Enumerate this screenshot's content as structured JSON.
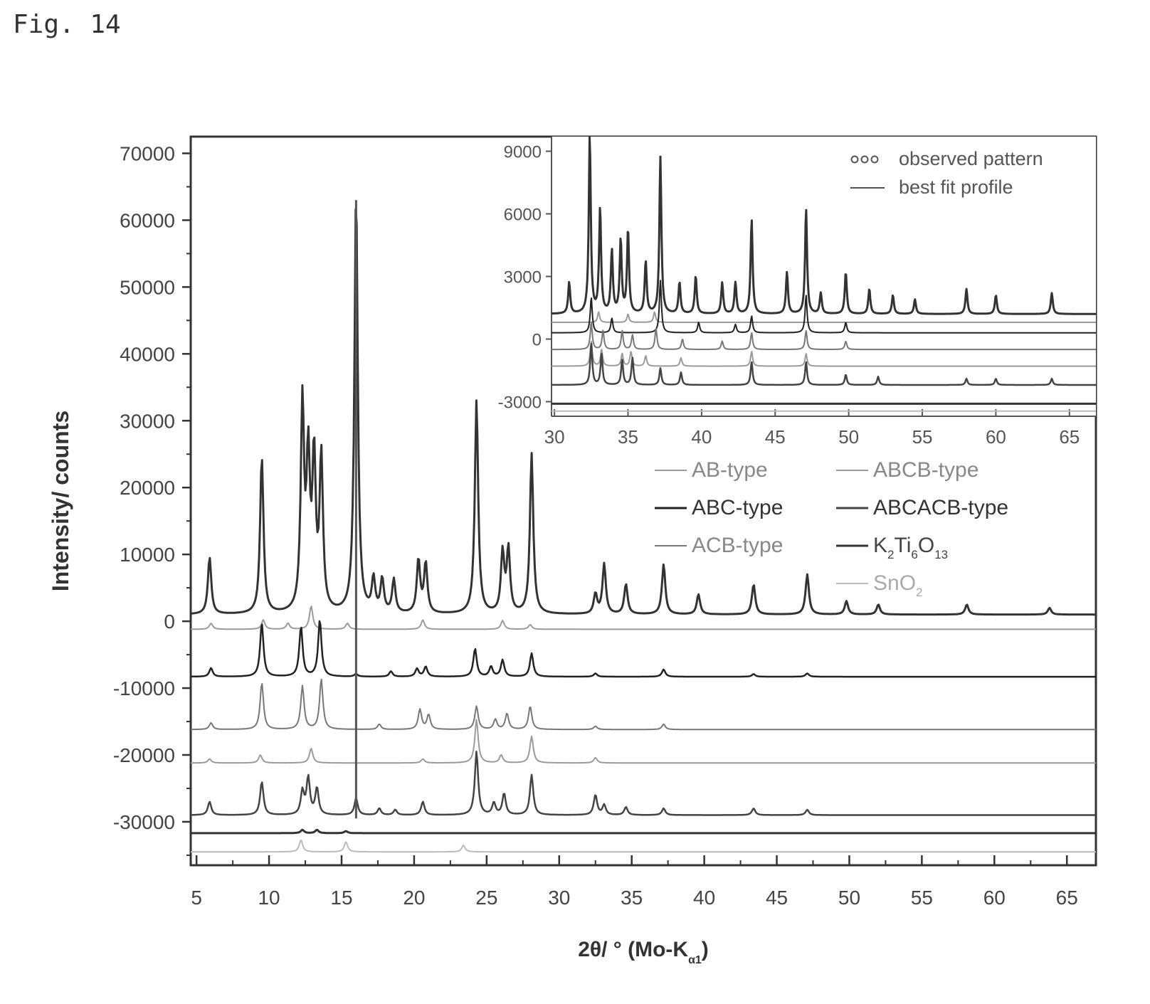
{
  "figure_label": "Fig. 14",
  "chart_data": [
    {
      "type": "line",
      "name": "main",
      "xlabel": "2θ/ ° (Mo-K",
      "xlabel_sub": "α1",
      "xlabel_close": ")",
      "ylabel": "Intensity/ counts",
      "xlim": [
        4.6,
        67
      ],
      "ylim": [
        -36500,
        72500
      ],
      "xticks": [
        5,
        10,
        15,
        20,
        25,
        30,
        35,
        40,
        45,
        50,
        55,
        60,
        65
      ],
      "yticks": [
        70000,
        60000,
        50000,
        40000,
        30000,
        20000,
        10000,
        0,
        -10000,
        -20000,
        -30000
      ],
      "ytick_labels": [
        "70000",
        "60000",
        "50000",
        "40000",
        "30000",
        "20000",
        "10000",
        "0",
        "-10000",
        "-20000",
        "-30000"
      ],
      "grid": false,
      "legend_position": "middle-right",
      "legend": [
        {
          "label": "AB-type",
          "color": "#9a9a9a",
          "width": 2
        },
        {
          "label": "ABCB-type",
          "color": "#9a9a9a",
          "width": 2
        },
        {
          "label": "ABC-type",
          "color": "#222222",
          "width": 3
        },
        {
          "label": "ABCACB-type",
          "color": "#444444",
          "width": 3
        },
        {
          "label": "ACB-type",
          "color": "#777777",
          "width": 2
        },
        {
          "label": "K",
          "label_parts": [
            "K",
            "2",
            "Ti",
            "6",
            "O",
            "13"
          ],
          "color": "#333333",
          "width": 3
        },
        {
          "label": "SnO",
          "label_parts": [
            "SnO",
            "2"
          ],
          "color": "#bbbbbb",
          "width": 2
        }
      ],
      "series": [
        {
          "name": "observed/fit",
          "offset": 1000,
          "color": "#333333",
          "width": 3,
          "peaks": [
            [
              5.9,
              8500
            ],
            [
              9.5,
              23500
            ],
            [
              12.3,
              31000
            ],
            [
              12.7,
              22000
            ],
            [
              13.1,
              22500
            ],
            [
              13.6,
              23000
            ],
            [
              16.0,
              63000
            ],
            [
              17.2,
              5000
            ],
            [
              17.8,
              5000
            ],
            [
              18.6,
              5000
            ],
            [
              20.3,
              8000
            ],
            [
              20.8,
              7500
            ],
            [
              24.3,
              32000
            ],
            [
              26.1,
              9000
            ],
            [
              26.5,
              9500
            ],
            [
              28.1,
              24000
            ],
            [
              32.5,
              3000
            ],
            [
              33.1,
              7500
            ],
            [
              34.6,
              4500
            ],
            [
              37.2,
              7500
            ],
            [
              39.6,
              3000
            ],
            [
              43.4,
              4500
            ],
            [
              47.1,
              6000
            ],
            [
              49.8,
              2000
            ],
            [
              52.0,
              1500
            ],
            [
              58.1,
              1500
            ],
            [
              63.8,
              1000
            ]
          ]
        },
        {
          "name": "AB-type",
          "offset": -1200,
          "color": "#9a9a9a",
          "width": 2,
          "peaks": [
            [
              6.0,
              900
            ],
            [
              9.6,
              1400
            ],
            [
              11.3,
              900
            ],
            [
              12.9,
              3500
            ],
            [
              15.4,
              900
            ],
            [
              20.6,
              1400
            ],
            [
              26.1,
              1300
            ],
            [
              28.0,
              700
            ]
          ]
        },
        {
          "name": "ABC-type",
          "offset": -8300,
          "color": "#222222",
          "width": 2.5,
          "peaks": [
            [
              6.0,
              1300
            ],
            [
              9.5,
              8000
            ],
            [
              12.2,
              7500
            ],
            [
              13.5,
              8500
            ],
            [
              16.0,
              400
            ],
            [
              18.4,
              800
            ],
            [
              20.2,
              1200
            ],
            [
              20.8,
              1500
            ],
            [
              24.2,
              4200
            ],
            [
              25.3,
              1500
            ],
            [
              26.1,
              2500
            ],
            [
              28.1,
              3500
            ],
            [
              32.5,
              500
            ],
            [
              37.2,
              1100
            ],
            [
              43.4,
              400
            ],
            [
              47.1,
              500
            ]
          ]
        },
        {
          "name": "ACB-type",
          "offset": -16200,
          "color": "#777777",
          "width": 2,
          "peaks": [
            [
              6.0,
              1000
            ],
            [
              9.5,
              7000
            ],
            [
              12.3,
              6500
            ],
            [
              13.6,
              7500
            ],
            [
              17.6,
              800
            ],
            [
              20.4,
              3000
            ],
            [
              21.0,
              2200
            ],
            [
              24.3,
              3500
            ],
            [
              25.6,
              1500
            ],
            [
              26.4,
              2400
            ],
            [
              28.0,
              3500
            ],
            [
              32.5,
              500
            ],
            [
              37.2,
              800
            ]
          ]
        },
        {
          "name": "ABCB-type",
          "offset": -21200,
          "color": "#9a9a9a",
          "width": 2,
          "peaks": [
            [
              5.9,
              600
            ],
            [
              9.4,
              1200
            ],
            [
              12.9,
              2200
            ],
            [
              20.6,
              600
            ],
            [
              24.3,
              6500
            ],
            [
              26.0,
              1200
            ],
            [
              28.1,
              4000
            ],
            [
              32.5,
              800
            ]
          ]
        },
        {
          "name": "ABCACB-type",
          "offset": -29000,
          "color": "#444444",
          "width": 2.5,
          "peaks": [
            [
              5.9,
              2000
            ],
            [
              9.5,
              5000
            ],
            [
              12.3,
              3500
            ],
            [
              12.7,
              5500
            ],
            [
              13.3,
              4000
            ],
            [
              16.0,
              2500
            ],
            [
              17.6,
              1000
            ],
            [
              18.7,
              800
            ],
            [
              20.6,
              2000
            ],
            [
              24.3,
              9500
            ],
            [
              25.5,
              1800
            ],
            [
              26.2,
              3200
            ],
            [
              28.1,
              6000
            ],
            [
              32.5,
              3000
            ],
            [
              33.1,
              1500
            ],
            [
              34.6,
              1200
            ],
            [
              37.2,
              1000
            ],
            [
              43.4,
              1000
            ],
            [
              47.1,
              800
            ]
          ]
        },
        {
          "name": "K2Ti6O13",
          "offset": -31700,
          "color": "#333333",
          "width": 3,
          "peaks": [
            [
              12.3,
              500
            ],
            [
              13.3,
              500
            ],
            [
              15.3,
              300
            ]
          ]
        },
        {
          "name": "SnO2",
          "offset": -34500,
          "color": "#bbbbbb",
          "width": 2,
          "peaks": [
            [
              12.2,
              1800
            ],
            [
              15.3,
              1500
            ],
            [
              23.4,
              1000
            ]
          ]
        }
      ],
      "spikes": [
        {
          "x": 16.0,
          "from": -29500,
          "to": 63000,
          "color": "#555555",
          "width": 3
        }
      ]
    },
    {
      "type": "line",
      "name": "inset",
      "xlim": [
        29.8,
        66.8
      ],
      "ylim": [
        -3700,
        9700
      ],
      "xticks": [
        30,
        35,
        40,
        45,
        50,
        55,
        60,
        65
      ],
      "yticks": [
        9000,
        6000,
        3000,
        0,
        -3000
      ],
      "ytick_labels": [
        "9000",
        "6000",
        "3000",
        "0",
        "-3000"
      ],
      "legend_position": "top-right",
      "legend": [
        {
          "label": "observed pattern",
          "style": "circles",
          "color": "#555555"
        },
        {
          "label": "best fit profile",
          "style": "line",
          "color": "#555555"
        }
      ],
      "series": [
        {
          "name": "observed/fit",
          "offset": 1200,
          "color": "#333333",
          "width": 3,
          "peaks": [
            [
              31.0,
              1500
            ],
            [
              32.4,
              8500
            ],
            [
              33.1,
              5000
            ],
            [
              33.9,
              3000
            ],
            [
              34.5,
              3500
            ],
            [
              35.0,
              4000
            ],
            [
              36.2,
              2500
            ],
            [
              37.2,
              7500
            ],
            [
              38.5,
              1500
            ],
            [
              39.6,
              1800
            ],
            [
              41.4,
              1500
            ],
            [
              42.3,
              1500
            ],
            [
              43.4,
              4500
            ],
            [
              45.8,
              2000
            ],
            [
              47.1,
              5000
            ],
            [
              48.1,
              1000
            ],
            [
              49.8,
              2000
            ],
            [
              51.4,
              1200
            ],
            [
              53.0,
              900
            ],
            [
              54.5,
              700
            ],
            [
              58.0,
              1200
            ],
            [
              60.0,
              900
            ],
            [
              63.8,
              1000
            ]
          ]
        },
        {
          "name": "AB-type",
          "offset": 800,
          "color": "#9a9a9a",
          "width": 2,
          "peaks": [
            [
              33.0,
              500
            ],
            [
              35.0,
              400
            ],
            [
              36.8,
              500
            ]
          ]
        },
        {
          "name": "ABC-type",
          "offset": 300,
          "color": "#222222",
          "width": 2,
          "peaks": [
            [
              32.5,
              1700
            ],
            [
              33.9,
              700
            ],
            [
              37.2,
              2500
            ],
            [
              39.8,
              500
            ],
            [
              42.3,
              400
            ],
            [
              43.4,
              800
            ],
            [
              47.1,
              1800
            ],
            [
              49.8,
              500
            ]
          ]
        },
        {
          "name": "ACB-type",
          "offset": -500,
          "color": "#777777",
          "width": 2,
          "peaks": [
            [
              32.5,
              1300
            ],
            [
              33.3,
              900
            ],
            [
              34.6,
              900
            ],
            [
              35.3,
              700
            ],
            [
              36.9,
              1000
            ],
            [
              38.7,
              500
            ],
            [
              41.4,
              400
            ],
            [
              43.4,
              800
            ],
            [
              47.1,
              900
            ],
            [
              49.8,
              400
            ]
          ]
        },
        {
          "name": "ABCB-type",
          "offset": -1300,
          "color": "#9a9a9a",
          "width": 2,
          "peaks": [
            [
              32.5,
              1200
            ],
            [
              33.2,
              800
            ],
            [
              34.6,
              600
            ],
            [
              35.2,
              700
            ],
            [
              36.2,
              500
            ],
            [
              38.6,
              400
            ],
            [
              43.4,
              700
            ],
            [
              47.1,
              600
            ]
          ]
        },
        {
          "name": "ABCACB-type",
          "offset": -2200,
          "color": "#444444",
          "width": 2.5,
          "peaks": [
            [
              32.5,
              2000
            ],
            [
              33.2,
              1500
            ],
            [
              34.6,
              1200
            ],
            [
              35.3,
              1300
            ],
            [
              37.2,
              800
            ],
            [
              38.6,
              600
            ],
            [
              43.4,
              1100
            ],
            [
              47.1,
              1100
            ],
            [
              49.8,
              500
            ],
            [
              52.0,
              400
            ],
            [
              58.0,
              300
            ],
            [
              60.0,
              300
            ],
            [
              63.8,
              300
            ]
          ]
        },
        {
          "name": "K2Ti6O13",
          "offset": -3100,
          "color": "#333333",
          "width": 3,
          "peaks": []
        },
        {
          "name": "SnO2",
          "offset": -3450,
          "color": "#bbbbbb",
          "width": 2,
          "peaks": []
        }
      ],
      "spikes": []
    }
  ]
}
